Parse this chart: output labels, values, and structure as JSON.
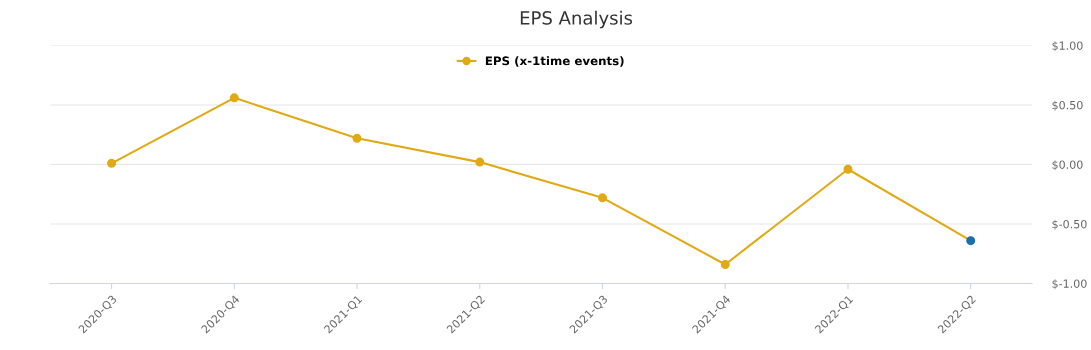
{
  "chart_data": {
    "type": "line",
    "title": "EPS Analysis",
    "categories": [
      "2020-Q3",
      "2020-Q4",
      "2021-Q1",
      "2021-Q2",
      "2021-Q3",
      "2021-Q4",
      "2022-Q1",
      "2022-Q2"
    ],
    "series": [
      {
        "name": "EPS (x-1time events)",
        "color": "#e0aa14",
        "colors": [
          "#e0aa14",
          "#e0aa14",
          "#e0aa14",
          "#e0aa14",
          "#e0aa14",
          "#e0aa14",
          "#e0aa14",
          "#1a6fb0"
        ],
        "values": [
          0.01,
          0.56,
          0.22,
          0.02,
          -0.28,
          -0.84,
          -0.04,
          -0.64
        ]
      }
    ],
    "ylim": [
      -1,
      1
    ],
    "yticks": [
      {
        "value": -1,
        "label": "$-1.00"
      },
      {
        "value": -0.5,
        "label": "$-0.50"
      },
      {
        "value": 0,
        "label": "$0.00"
      },
      {
        "value": 0.5,
        "label": "$0.50"
      },
      {
        "value": 1,
        "label": "$1.00"
      }
    ],
    "grid": "y",
    "legend": "top",
    "marker": "circle",
    "line_style": "solid"
  }
}
